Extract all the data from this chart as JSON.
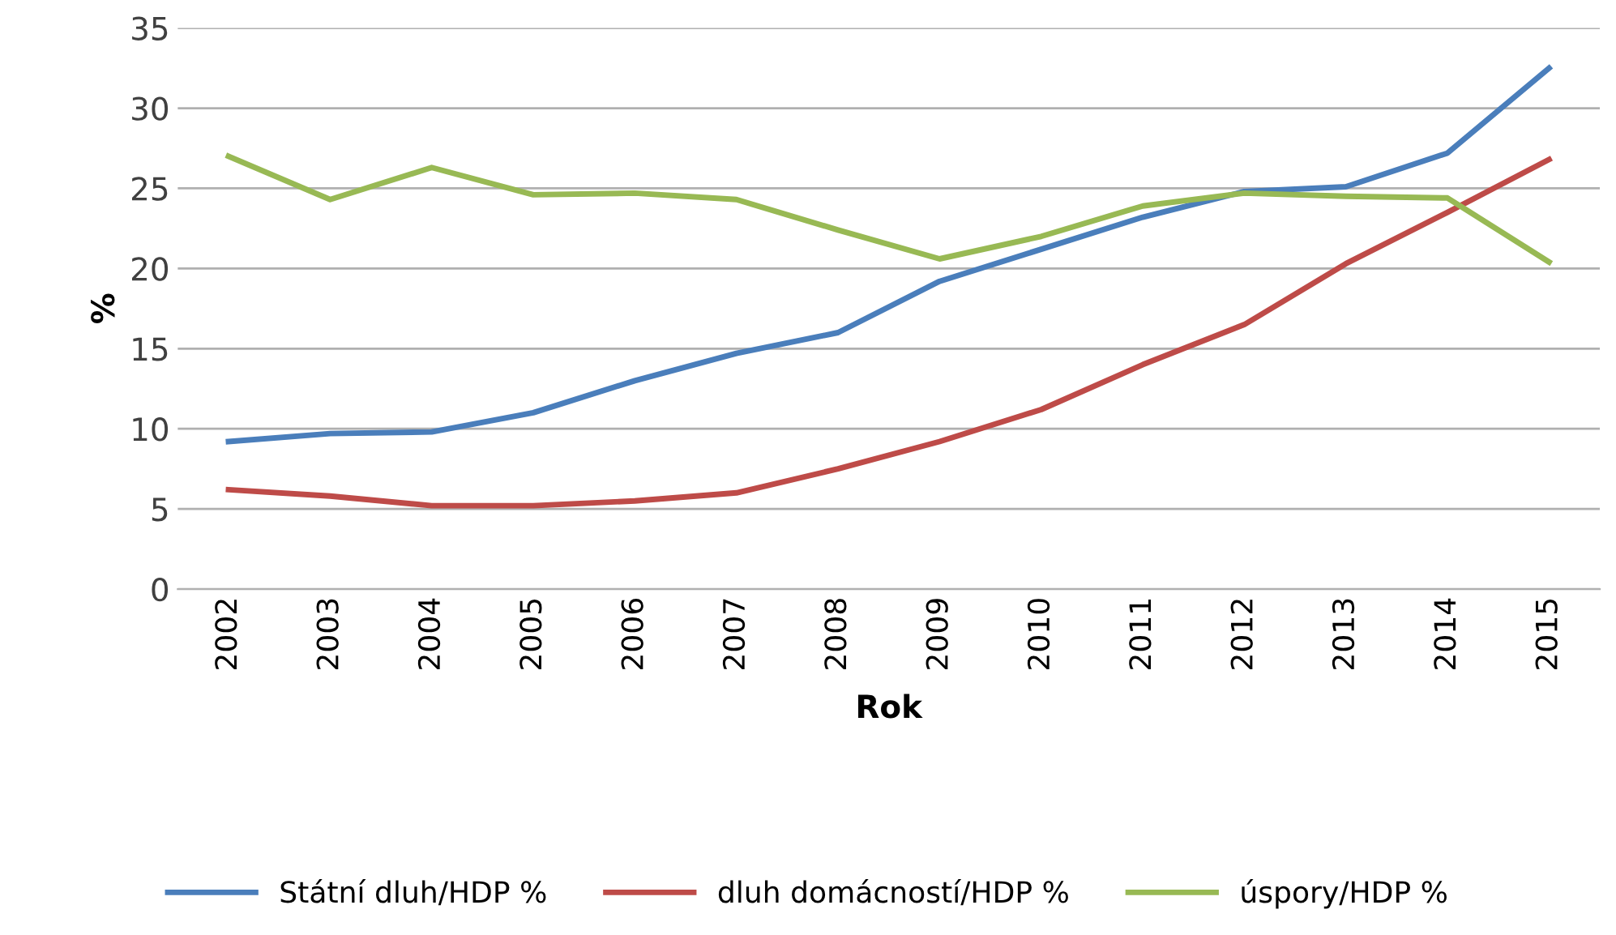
{
  "chart_data": {
    "type": "line",
    "xlabel": "Rok",
    "ylabel": "%",
    "categories": [
      "2002",
      "2003",
      "2004",
      "2005",
      "2006",
      "2007",
      "2008",
      "2009",
      "2010",
      "2011",
      "2012",
      "2013",
      "2014",
      "2015"
    ],
    "series": [
      {
        "name": "Státní dluh/HDP %",
        "color": "#4a7ebb",
        "values": [
          9.2,
          9.7,
          9.8,
          11.0,
          13.0,
          14.7,
          16.0,
          19.2,
          21.2,
          23.2,
          24.8,
          25.1,
          27.2,
          32.5
        ]
      },
      {
        "name": "dluh domácností/HDP %",
        "color": "#be4b48",
        "values": [
          6.2,
          5.8,
          5.2,
          5.2,
          5.5,
          6.0,
          7.5,
          9.2,
          11.2,
          14.0,
          16.5,
          20.3,
          23.5,
          26.8
        ]
      },
      {
        "name": "úspory/HDP %",
        "color": "#98b954",
        "values": [
          27.0,
          24.3,
          26.3,
          24.6,
          24.7,
          24.3,
          22.4,
          20.6,
          22.0,
          23.9,
          24.7,
          24.5,
          24.4,
          20.4
        ]
      }
    ],
    "ylim": [
      0,
      35
    ],
    "yticks": [
      0,
      5,
      10,
      15,
      20,
      25,
      30,
      35
    ],
    "grid": "y",
    "legend": "bottom",
    "marker": "none",
    "line_style": "solid"
  }
}
